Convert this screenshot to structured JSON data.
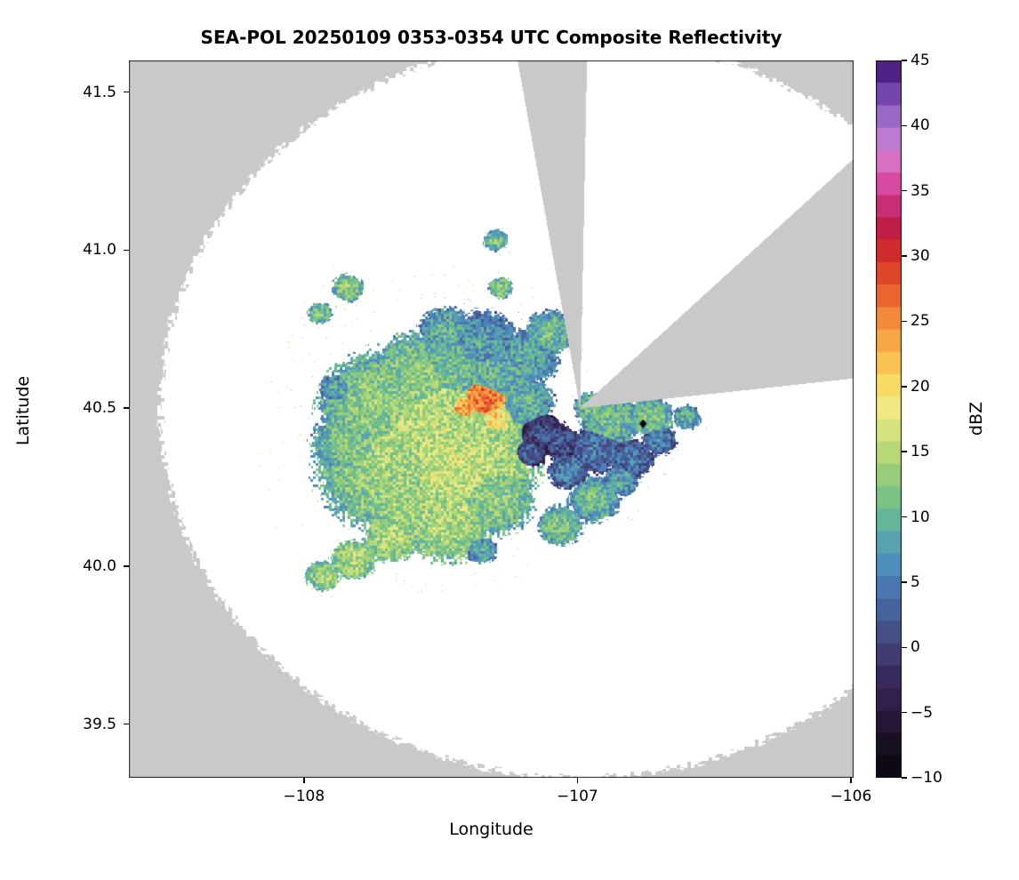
{
  "title": "SEA-POL 20250109 0353-0354 UTC Composite Reflectivity",
  "axes": {
    "xlabel": "Longitude",
    "ylabel": "Latitude",
    "x_ticks": [
      {
        "value": -108,
        "label": "−108"
      },
      {
        "value": -107,
        "label": "−107"
      },
      {
        "value": -106,
        "label": "−106"
      }
    ],
    "y_ticks": [
      {
        "value": 41.5,
        "label": "41.5"
      },
      {
        "value": 41.0,
        "label": "41.0"
      },
      {
        "value": 40.5,
        "label": "40.5"
      },
      {
        "value": 40.0,
        "label": "40.0"
      },
      {
        "value": 39.5,
        "label": "39.5"
      }
    ]
  },
  "colorbar": {
    "label": "dBZ",
    "vmin": -10,
    "vmax": 45,
    "ticks": [
      {
        "value": 45,
        "label": "45"
      },
      {
        "value": 40,
        "label": "40"
      },
      {
        "value": 35,
        "label": "35"
      },
      {
        "value": 30,
        "label": "30"
      },
      {
        "value": 25,
        "label": "25"
      },
      {
        "value": 20,
        "label": "20"
      },
      {
        "value": 15,
        "label": "15"
      },
      {
        "value": 10,
        "label": "10"
      },
      {
        "value": 5,
        "label": "5"
      },
      {
        "value": 0,
        "label": "0"
      },
      {
        "value": -5,
        "label": "−5"
      },
      {
        "value": -10,
        "label": "−10"
      }
    ]
  },
  "chart_data": {
    "type": "heatmap",
    "subtype": "radar_ppi_composite_reflectivity",
    "title": "SEA-POL 20250109 0353-0354 UTC Composite Reflectivity",
    "xlabel": "Longitude",
    "ylabel": "Latitude",
    "value_label": "dBZ",
    "xlim": [
      -108.64,
      -105.99
    ],
    "ylim": [
      39.33,
      41.6
    ],
    "grid": false,
    "background_color": "#c9c9c9",
    "scan_area_color": "#ffffff",
    "radar": {
      "lon": -106.99,
      "lat": 40.5
    },
    "range_deg_lat": 1.17,
    "lon_scale": 0.762,
    "blocked_sectors_deg": [
      [
        -9,
        1
      ],
      [
        44,
        83
      ]
    ],
    "marker": {
      "shape": "diamond",
      "color": "#000000",
      "lon": -106.76,
      "lat": 40.45
    },
    "colormap_stops": [
      [
        -10,
        "#0b060d"
      ],
      [
        -7,
        "#1c1126"
      ],
      [
        -4,
        "#31204a"
      ],
      [
        -2,
        "#3a2c60"
      ],
      [
        0,
        "#424478"
      ],
      [
        2,
        "#46598f"
      ],
      [
        4,
        "#4a70ab"
      ],
      [
        6,
        "#4e89c0"
      ],
      [
        8,
        "#57a2b2"
      ],
      [
        10,
        "#66b897"
      ],
      [
        12,
        "#83c67f"
      ],
      [
        14,
        "#a5d377"
      ],
      [
        16,
        "#cce07b"
      ],
      [
        18,
        "#eeeb89"
      ],
      [
        20,
        "#f8dd68"
      ],
      [
        22,
        "#f9c050"
      ],
      [
        24,
        "#f6a044"
      ],
      [
        26,
        "#f07b36"
      ],
      [
        28,
        "#e5512b"
      ],
      [
        30,
        "#d52f28"
      ],
      [
        32,
        "#c01d45"
      ],
      [
        33.5,
        "#c52a6e"
      ],
      [
        35,
        "#d43f97"
      ],
      [
        36.5,
        "#dd5fb7"
      ],
      [
        38,
        "#d27fd0"
      ],
      [
        40,
        "#a878cf"
      ],
      [
        42,
        "#7d4fb4"
      ],
      [
        44,
        "#53258a"
      ],
      [
        45,
        "#41156b"
      ]
    ],
    "echo_cells": [
      {
        "lon": -107.52,
        "lat": 40.44,
        "r": 0.3,
        "dbz": 15
      },
      {
        "lon": -107.45,
        "lat": 40.32,
        "r": 0.24,
        "dbz": 16
      },
      {
        "lon": -107.68,
        "lat": 40.32,
        "r": 0.22,
        "dbz": 14
      },
      {
        "lon": -107.72,
        "lat": 40.5,
        "r": 0.18,
        "dbz": 13
      },
      {
        "lon": -107.58,
        "lat": 40.58,
        "r": 0.16,
        "dbz": 13
      },
      {
        "lon": -107.48,
        "lat": 40.16,
        "r": 0.15,
        "dbz": 15
      },
      {
        "lon": -107.32,
        "lat": 40.22,
        "r": 0.13,
        "dbz": 13
      },
      {
        "lon": -107.62,
        "lat": 40.2,
        "r": 0.13,
        "dbz": 14
      },
      {
        "lon": -107.82,
        "lat": 40.38,
        "r": 0.12,
        "dbz": 12
      },
      {
        "lon": -107.45,
        "lat": 40.62,
        "r": 0.15,
        "dbz": 11
      },
      {
        "lon": -107.3,
        "lat": 40.6,
        "r": 0.13,
        "dbz": 10
      },
      {
        "lon": -107.35,
        "lat": 40.7,
        "r": 0.11,
        "dbz": 8
      },
      {
        "lon": -107.18,
        "lat": 40.66,
        "r": 0.09,
        "dbz": 9
      },
      {
        "lon": -107.48,
        "lat": 40.74,
        "r": 0.08,
        "dbz": 10
      },
      {
        "lon": -107.1,
        "lat": 40.74,
        "r": 0.07,
        "dbz": 11
      },
      {
        "lon": -107.34,
        "lat": 40.53,
        "r": 0.11,
        "dbz": 27
      },
      {
        "lon": -107.42,
        "lat": 40.5,
        "r": 0.085,
        "dbz": 24
      },
      {
        "lon": -107.3,
        "lat": 40.47,
        "r": 0.07,
        "dbz": 21
      },
      {
        "lon": -107.13,
        "lat": 40.42,
        "r": 0.07,
        "dbz": 1
      },
      {
        "lon": -107.06,
        "lat": 40.39,
        "r": 0.055,
        "dbz": 2
      },
      {
        "lon": -107.17,
        "lat": 40.36,
        "r": 0.05,
        "dbz": 3
      },
      {
        "lon": -106.93,
        "lat": 40.37,
        "r": 0.08,
        "dbz": 5
      },
      {
        "lon": -106.8,
        "lat": 40.34,
        "r": 0.065,
        "dbz": 5
      },
      {
        "lon": -107.03,
        "lat": 40.3,
        "r": 0.06,
        "dbz": 6
      },
      {
        "lon": -106.7,
        "lat": 40.4,
        "r": 0.05,
        "dbz": 6
      },
      {
        "lon": -106.88,
        "lat": 40.46,
        "r": 0.09,
        "dbz": 11
      },
      {
        "lon": -106.73,
        "lat": 40.47,
        "r": 0.065,
        "dbz": 12
      },
      {
        "lon": -106.6,
        "lat": 40.47,
        "r": 0.04,
        "dbz": 10
      },
      {
        "lon": -106.94,
        "lat": 40.21,
        "r": 0.075,
        "dbz": 11
      },
      {
        "lon": -107.06,
        "lat": 40.13,
        "r": 0.065,
        "dbz": 12
      },
      {
        "lon": -106.84,
        "lat": 40.27,
        "r": 0.05,
        "dbz": 9
      },
      {
        "lon": -107.68,
        "lat": 40.09,
        "r": 0.08,
        "dbz": 15
      },
      {
        "lon": -107.82,
        "lat": 40.02,
        "r": 0.065,
        "dbz": 15
      },
      {
        "lon": -107.93,
        "lat": 39.97,
        "r": 0.05,
        "dbz": 14
      },
      {
        "lon": -107.84,
        "lat": 40.88,
        "r": 0.045,
        "dbz": 13
      },
      {
        "lon": -107.94,
        "lat": 40.8,
        "r": 0.035,
        "dbz": 12
      },
      {
        "lon": -107.28,
        "lat": 40.88,
        "r": 0.035,
        "dbz": 13
      },
      {
        "lon": -107.3,
        "lat": 41.03,
        "r": 0.035,
        "dbz": 12
      },
      {
        "lon": -107.88,
        "lat": 40.56,
        "r": 0.05,
        "dbz": 9
      },
      {
        "lon": -107.35,
        "lat": 40.05,
        "r": 0.045,
        "dbz": 9
      },
      {
        "lon": -107.2,
        "lat": 40.52,
        "r": 0.09,
        "dbz": 10
      },
      {
        "lon": -106.95,
        "lat": 40.5,
        "r": 0.05,
        "dbz": 11
      }
    ]
  }
}
